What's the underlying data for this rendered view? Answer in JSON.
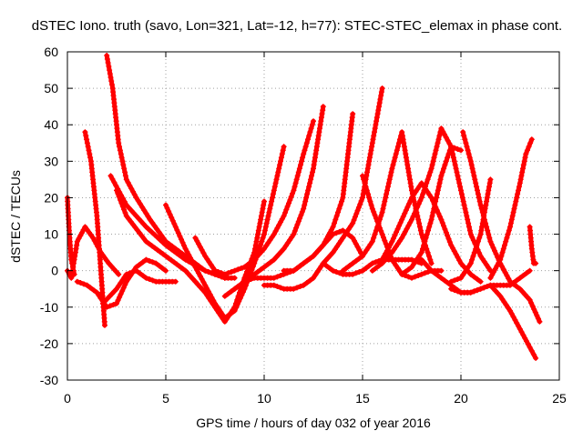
{
  "chart_data": {
    "type": "scatter",
    "title": "dSTEC Iono. truth (savo, Lon=321, Lat=-12, h=77): STEC-STEC_elemax in phase cont.",
    "xlabel": "GPS time / hours of day 032 of year 2016",
    "ylabel": "dSTEC  / TECUs",
    "xlim": [
      0,
      25
    ],
    "ylim": [
      -30,
      60
    ],
    "xticks": [
      0,
      5,
      10,
      15,
      20,
      25
    ],
    "yticks": [
      -30,
      -20,
      -10,
      0,
      10,
      20,
      30,
      40,
      50,
      60
    ],
    "grid": true,
    "marker": "plus",
    "color": "#ff0000",
    "series": [
      {
        "x": [
          0.0,
          0.2,
          0.5,
          0.9,
          1.3,
          1.7,
          2.1,
          2.6
        ],
        "y": [
          0,
          -2,
          8,
          12,
          9,
          5,
          2,
          -1
        ]
      },
      {
        "x": [
          0.0,
          0.1,
          0.2,
          0.35
        ],
        "y": [
          20,
          10,
          3,
          -1
        ]
      },
      {
        "x": [
          0.9,
          1.2,
          1.5,
          1.7,
          1.9
        ],
        "y": [
          38,
          30,
          15,
          0,
          -15
        ]
      },
      {
        "x": [
          2.0,
          2.3,
          2.6,
          3.0,
          3.5,
          4.2,
          5.0,
          5.5,
          6.0,
          6.5,
          7.0,
          7.5,
          8.0
        ],
        "y": [
          59,
          50,
          35,
          25,
          20,
          14,
          8,
          6,
          4,
          2,
          0,
          -1,
          -2
        ]
      },
      {
        "x": [
          2.2,
          3.0,
          4.0,
          5.0,
          6.0,
          7.0,
          8.0,
          8.5
        ],
        "y": [
          26,
          18,
          12,
          7,
          3,
          0,
          -2,
          -2
        ]
      },
      {
        "x": [
          2.5,
          3.0,
          4.0,
          5.0,
          6.0,
          7.0,
          7.5,
          8.0,
          8.5,
          9.0,
          9.5,
          10.0
        ],
        "y": [
          22,
          15,
          8,
          4,
          0,
          -6,
          -10,
          -14,
          -10,
          -2,
          5,
          19
        ]
      },
      {
        "x": [
          1.8,
          2.5,
          3.0,
          3.5,
          4.0,
          4.5,
          5.0,
          5.5
        ],
        "y": [
          -9,
          -5,
          -1,
          0,
          -2,
          -3,
          -3,
          -3
        ]
      },
      {
        "x": [
          0.5,
          1.0,
          1.5,
          2.0,
          2.5,
          3.0,
          3.5,
          4.0,
          4.5,
          5.0
        ],
        "y": [
          -3,
          -4,
          -6,
          -10,
          -9,
          -3,
          1,
          3,
          2,
          0
        ]
      },
      {
        "x": [
          5.0,
          5.5,
          6.0,
          6.5,
          7.0,
          7.5,
          8.0,
          8.5,
          9.0,
          9.5,
          10.0,
          10.5,
          11.0
        ],
        "y": [
          18,
          12,
          6,
          1,
          -4,
          -9,
          -13,
          -11,
          -5,
          2,
          10,
          22,
          34
        ]
      },
      {
        "x": [
          6.5,
          7.0,
          7.5,
          8.0,
          8.5,
          9.0,
          9.5,
          10.0,
          10.5,
          11.0,
          11.5,
          12.0,
          12.5
        ],
        "y": [
          9,
          4,
          0,
          -1,
          0,
          1,
          3,
          6,
          10,
          15,
          22,
          32,
          41
        ]
      },
      {
        "x": [
          8.0,
          8.5,
          9.0,
          9.5,
          10.0,
          10.5,
          11.0,
          11.5,
          12.0,
          12.5,
          13.0
        ],
        "y": [
          -7,
          -5,
          -3,
          -1,
          1,
          3,
          6,
          10,
          17,
          28,
          45
        ]
      },
      {
        "x": [
          8.5,
          9.0,
          9.5,
          10.0,
          10.5,
          11.0,
          11.5,
          12.0,
          12.5,
          13.0,
          13.5,
          14.0,
          14.5
        ],
        "y": [
          -5,
          -3,
          -2,
          -2,
          -2,
          -1,
          0,
          2,
          4,
          7,
          12,
          20,
          43
        ]
      },
      {
        "x": [
          10.0,
          10.5,
          11.0,
          11.5,
          12.0,
          12.5,
          13.0,
          13.5,
          14.0,
          14.5,
          15.0,
          15.5,
          16.0
        ],
        "y": [
          -4,
          -4,
          -5,
          -5,
          -4,
          -2,
          2,
          5,
          9,
          13,
          20,
          35,
          50
        ]
      },
      {
        "x": [
          11.0,
          11.5,
          12.0,
          12.5,
          13.0,
          13.5,
          14.0,
          14.5,
          15.0
        ],
        "y": [
          0,
          0,
          2,
          4,
          7,
          10,
          11,
          9,
          4
        ]
      },
      {
        "x": [
          13.0,
          13.5,
          14.0,
          14.5,
          15.0,
          15.5,
          16.0,
          16.5,
          17.0,
          17.5,
          18.0
        ],
        "y": [
          2,
          0,
          -1,
          -1,
          0,
          2,
          3,
          3,
          3,
          3,
          2
        ]
      },
      {
        "x": [
          15.0,
          15.5,
          16.0,
          16.5,
          17.0,
          17.5,
          18.0,
          18.5,
          19.0
        ],
        "y": [
          26,
          17,
          10,
          3,
          -1,
          -2,
          -1,
          0,
          0
        ]
      },
      {
        "x": [
          14.0,
          14.5,
          15.0,
          15.5,
          16.0,
          16.5,
          17.0,
          17.5,
          18.0,
          18.5
        ],
        "y": [
          0,
          2,
          4,
          8,
          16,
          28,
          38,
          22,
          10,
          2
        ]
      },
      {
        "x": [
          16.0,
          16.5,
          17.0,
          17.5,
          18.0,
          18.5,
          19.0,
          19.5,
          20.0,
          20.5,
          21.0
        ],
        "y": [
          3,
          8,
          14,
          20,
          24,
          20,
          14,
          7,
          2,
          -1,
          -3
        ]
      },
      {
        "x": [
          17.0,
          17.5,
          18.0,
          18.5,
          19.0,
          19.5,
          20.0
        ],
        "y": [
          -1,
          1,
          5,
          14,
          26,
          34,
          33
        ]
      },
      {
        "x": [
          15.5,
          16.0,
          16.5,
          17.0,
          17.5,
          18.0,
          18.5,
          19.0,
          19.5,
          20.0,
          20.5,
          21.0,
          21.5
        ],
        "y": [
          0,
          2,
          5,
          9,
          14,
          20,
          28,
          39,
          34,
          22,
          10,
          4,
          0
        ]
      },
      {
        "x": [
          18.0,
          18.5,
          19.0,
          19.5,
          20.0,
          20.5,
          21.0,
          21.5,
          22.0,
          22.5,
          23.0,
          23.5
        ],
        "y": [
          3,
          0,
          -2,
          -4,
          -6,
          -6,
          -5,
          -4,
          -4,
          -4,
          -2,
          0
        ]
      },
      {
        "x": [
          20.1,
          20.5,
          21.0,
          21.5,
          22.0,
          22.5,
          23.0,
          23.5,
          24.0
        ],
        "y": [
          38,
          30,
          18,
          8,
          2,
          -3,
          -5,
          -8,
          -14
        ]
      },
      {
        "x": [
          19.5,
          20.0,
          20.5,
          21.0,
          21.5,
          22.0,
          22.5,
          23.0,
          23.5,
          23.8
        ],
        "y": [
          -5,
          -6,
          -6,
          -5,
          -4,
          -7,
          -11,
          -16,
          -21,
          -24
        ]
      },
      {
        "x": [
          19.5,
          20.0,
          20.5,
          21.0,
          21.5
        ],
        "y": [
          -3,
          -2,
          2,
          10,
          25
        ]
      },
      {
        "x": [
          21.5,
          22.0,
          22.5,
          23.0,
          23.3,
          23.6
        ],
        "y": [
          -2,
          3,
          12,
          24,
          32,
          36
        ]
      },
      {
        "x": [
          23.5,
          23.6,
          23.7,
          23.8
        ],
        "y": [
          12,
          6,
          2,
          2
        ]
      }
    ]
  }
}
